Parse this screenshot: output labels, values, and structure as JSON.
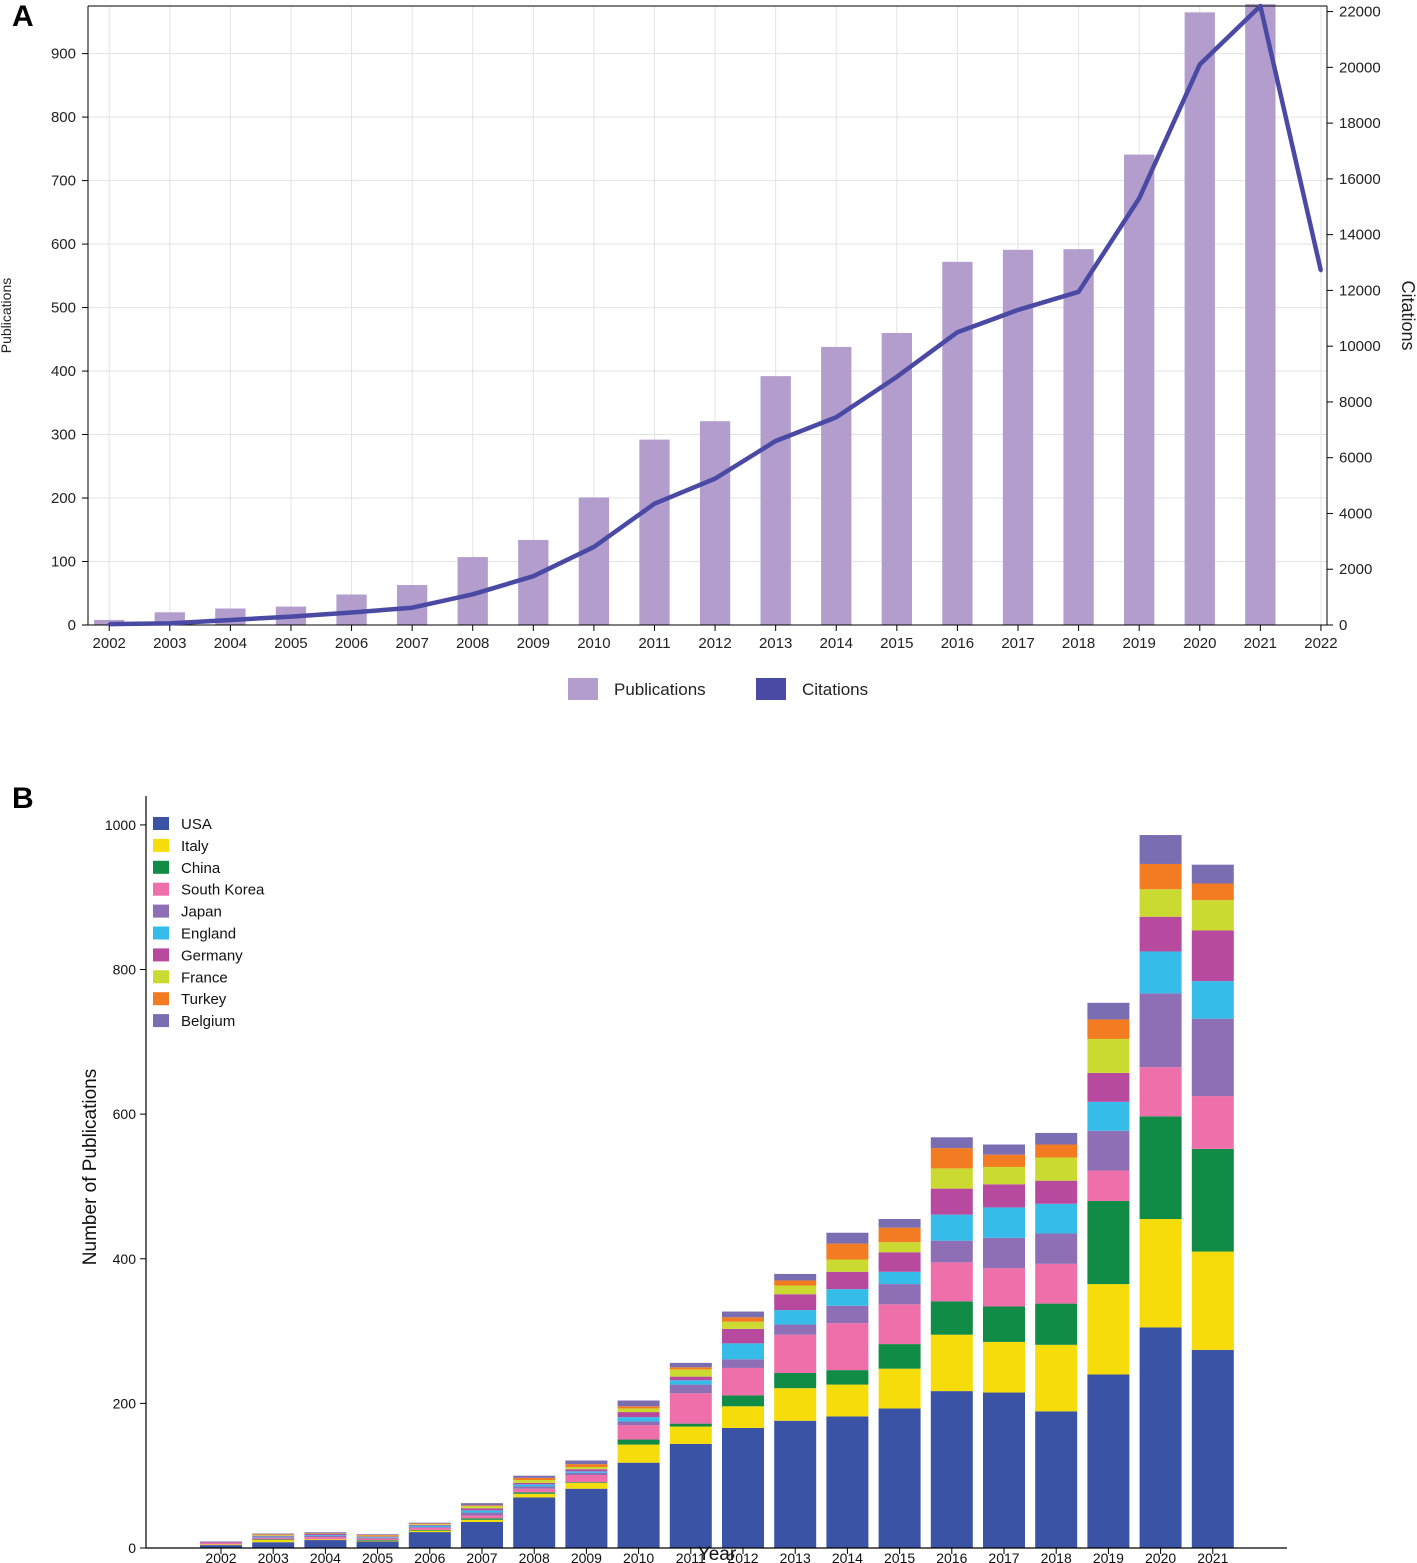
{
  "panels": {
    "a": "A",
    "b": "B"
  },
  "colors": {
    "publications_bar": "#b29dcc",
    "citations_line": "#4a4aa4",
    "grid": "#e3e3e3",
    "axis": "#000000"
  },
  "chart_data": [
    {
      "type": "bar",
      "title": "",
      "xlabel": "",
      "ylabel": "Publications",
      "ylabel_right": "Citations",
      "categories": [
        "2002",
        "2003",
        "2004",
        "2005",
        "2006",
        "2007",
        "2008",
        "2009",
        "2010",
        "2011",
        "2012",
        "2013",
        "2014",
        "2015",
        "2016",
        "2017",
        "2018",
        "2019",
        "2020",
        "2021",
        "2022"
      ],
      "series": [
        {
          "name": "Publications",
          "kind": "bar",
          "axis": "left",
          "values": [
            8,
            20,
            26,
            29,
            48,
            63,
            107,
            134,
            201,
            292,
            321,
            392,
            438,
            460,
            572,
            591,
            592,
            741,
            965,
            978,
            0
          ]
        },
        {
          "name": "Citations",
          "kind": "line",
          "axis": "right",
          "values": [
            30,
            60,
            180,
            300,
            450,
            620,
            1100,
            1750,
            2800,
            4350,
            5250,
            6600,
            7450,
            8900,
            10500,
            11300,
            11950,
            15300,
            20100,
            22200,
            12700
          ]
        }
      ],
      "ylim": [
        0,
        975
      ],
      "yticks": [
        0,
        100,
        200,
        300,
        400,
        500,
        600,
        700,
        800,
        900
      ],
      "ylim_right": [
        0,
        22200
      ],
      "yticks_right": [
        0,
        2000,
        4000,
        6000,
        8000,
        10000,
        12000,
        14000,
        16000,
        18000,
        20000,
        22000
      ],
      "legend": [
        "Publications",
        "Citations"
      ],
      "legend_position": "bottom-center",
      "grid": true
    },
    {
      "type": "bar",
      "stacked": true,
      "title": "",
      "xlabel": "Year",
      "ylabel": "Number of Publications",
      "categories": [
        "2002",
        "2003",
        "2004",
        "2005",
        "2006",
        "2007",
        "2008",
        "2009",
        "2010",
        "2011",
        "2012",
        "2013",
        "2014",
        "2015",
        "2016",
        "2017",
        "2018",
        "2019",
        "2020",
        "2021"
      ],
      "ylim": [
        0,
        1040
      ],
      "yticks": [
        0,
        200,
        400,
        600,
        800,
        1000
      ],
      "legend_position": "top-left",
      "grid": false,
      "series": [
        {
          "name": "USA",
          "color": "#3b53a4",
          "values": [
            4,
            8,
            11,
            9,
            22,
            36,
            70,
            82,
            118,
            144,
            166,
            176,
            182,
            193,
            217,
            215,
            189,
            240,
            305,
            274
          ]
        },
        {
          "name": "Italy",
          "color": "#f7dc0b",
          "values": [
            1,
            3,
            1,
            1,
            2,
            3,
            5,
            8,
            25,
            24,
            30,
            45,
            44,
            55,
            78,
            70,
            92,
            125,
            150,
            136
          ]
        },
        {
          "name": "China",
          "color": "#108c47",
          "values": [
            0,
            1,
            0,
            1,
            1,
            2,
            2,
            1,
            7,
            4,
            15,
            21,
            20,
            34,
            46,
            49,
            57,
            115,
            142,
            142
          ]
        },
        {
          "name": "South Korea",
          "color": "#ee6faa",
          "values": [
            2,
            2,
            3,
            2,
            3,
            4,
            5,
            10,
            20,
            42,
            38,
            53,
            65,
            55,
            54,
            53,
            55,
            42,
            68,
            73
          ]
        },
        {
          "name": "Japan",
          "color": "#8e6fb5",
          "values": [
            0,
            1,
            2,
            1,
            1,
            4,
            3,
            3,
            5,
            12,
            12,
            14,
            24,
            28,
            30,
            42,
            42,
            55,
            102,
            107
          ]
        },
        {
          "name": "England",
          "color": "#36bce9",
          "values": [
            0,
            1,
            1,
            1,
            2,
            3,
            3,
            2,
            6,
            6,
            22,
            20,
            23,
            17,
            36,
            42,
            41,
            40,
            58,
            52
          ]
        },
        {
          "name": "Germany",
          "color": "#b74a9f",
          "values": [
            1,
            1,
            2,
            1,
            1,
            3,
            2,
            3,
            7,
            5,
            20,
            22,
            24,
            27,
            36,
            32,
            32,
            40,
            48,
            70
          ]
        },
        {
          "name": "France",
          "color": "#cbda31",
          "values": [
            0,
            1,
            1,
            1,
            1,
            3,
            4,
            3,
            5,
            10,
            10,
            12,
            17,
            14,
            28,
            24,
            32,
            47,
            38,
            42
          ]
        },
        {
          "name": "Turkey",
          "color": "#f37c22",
          "values": [
            0,
            1,
            0,
            1,
            1,
            1,
            3,
            4,
            3,
            3,
            6,
            7,
            22,
            20,
            28,
            17,
            18,
            27,
            35,
            23
          ]
        },
        {
          "name": "Belgium",
          "color": "#7a6db2",
          "values": [
            1,
            1,
            1,
            1,
            1,
            3,
            3,
            5,
            8,
            6,
            8,
            9,
            15,
            12,
            15,
            14,
            16,
            23,
            40,
            26
          ]
        }
      ]
    }
  ]
}
